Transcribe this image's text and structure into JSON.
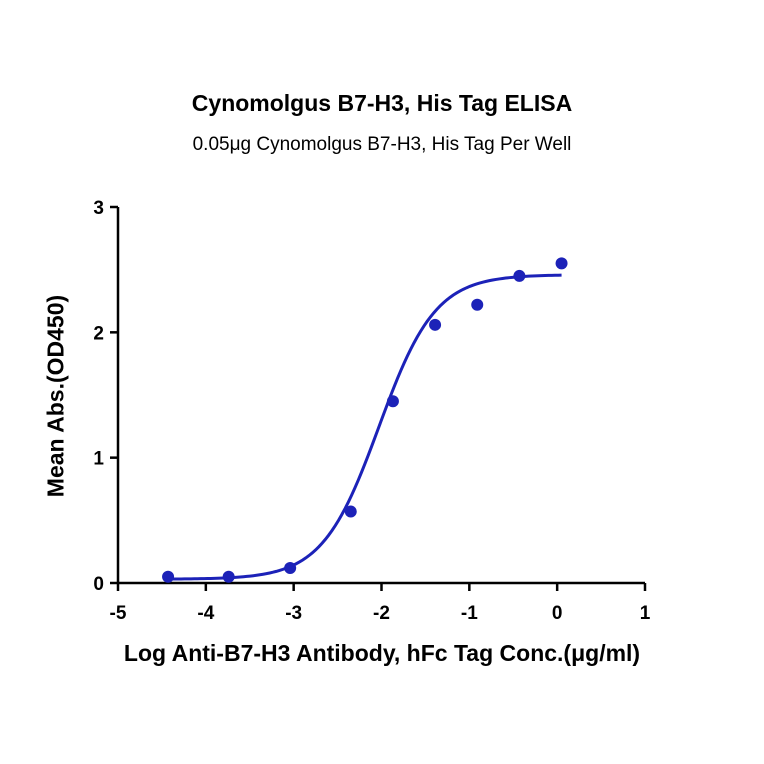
{
  "chart_data": {
    "type": "scatter",
    "title": "Cynomolgus B7-H3, His Tag ELISA",
    "subtitle": "0.05μg Cynomolgus B7-H3, His Tag Per Well",
    "xlabel": "Log Anti-B7-H3 Antibody, hFc Tag Conc.(μg/ml)",
    "ylabel": "Mean Abs.(OD450)",
    "xlim": [
      -5,
      1
    ],
    "ylim": [
      0,
      3
    ],
    "xticks": [
      -5,
      -4,
      -3,
      -2,
      -1,
      0,
      1
    ],
    "yticks": [
      0,
      1,
      2,
      3
    ],
    "xtick_labels": [
      "-5",
      "-4",
      "-3",
      "-2",
      "-1",
      "0",
      "1"
    ],
    "ytick_labels": [
      "0",
      "1",
      "2",
      "3"
    ],
    "grid": false,
    "legend": "none",
    "series": [
      {
        "points": [
          {
            "x": -4.43,
            "y": 0.05
          },
          {
            "x": -3.74,
            "y": 0.05
          },
          {
            "x": -3.04,
            "y": 0.12
          },
          {
            "x": -2.35,
            "y": 0.57
          },
          {
            "x": -1.87,
            "y": 1.45
          },
          {
            "x": -1.39,
            "y": 2.06
          },
          {
            "x": -0.91,
            "y": 2.22
          },
          {
            "x": -0.43,
            "y": 2.45
          },
          {
            "x": 0.05,
            "y": 2.55
          }
        ],
        "fit": {
          "model": "4PL",
          "bottom": 0.03,
          "top": 2.46,
          "logEC50": -2.03,
          "hill": 1.35
        }
      }
    ],
    "colors": {
      "series": "#1c22b8",
      "axis": "#000000"
    }
  }
}
